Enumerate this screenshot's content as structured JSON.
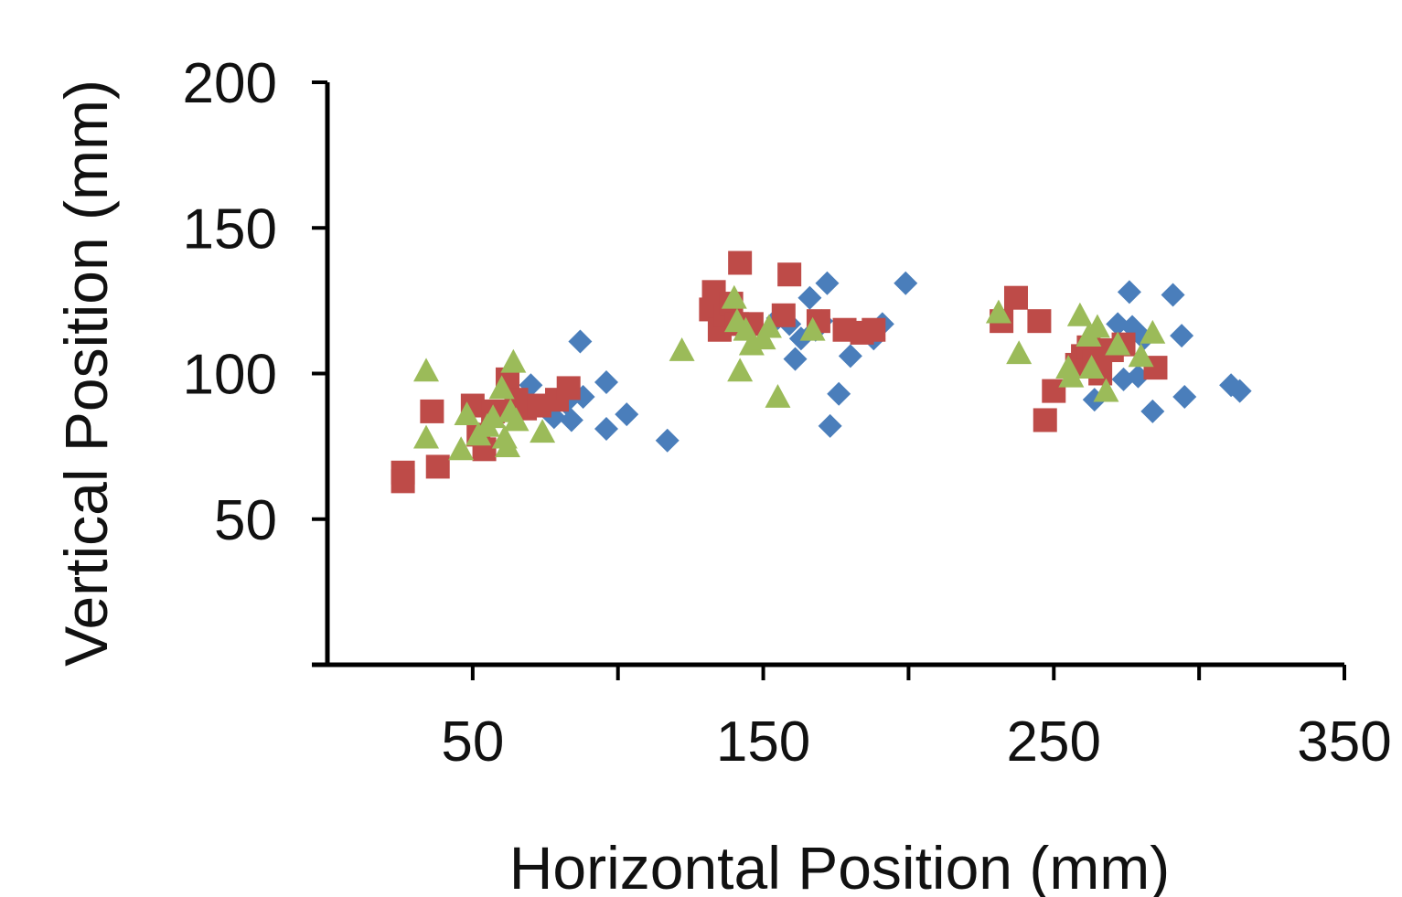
{
  "chart_data": {
    "type": "scatter",
    "title": "",
    "xlabel": "Horizontal Position (mm)",
    "ylabel": "Vertical Position (mm)",
    "xlim": [
      0,
      350
    ],
    "ylim": [
      0,
      200
    ],
    "xticks": [
      50,
      150,
      250,
      350
    ],
    "yticks": [
      50,
      100,
      150,
      200
    ],
    "xtick_labels": [
      "50",
      "150",
      "250",
      "350"
    ],
    "ytick_labels": [
      "50",
      "100",
      "150",
      "200"
    ],
    "grid": false,
    "legend": "none",
    "series": [
      {
        "marker": "diamond",
        "color": "#4a7ebb",
        "points": [
          [
            70,
            96
          ],
          [
            76,
            87
          ],
          [
            78,
            85
          ],
          [
            82,
            90
          ],
          [
            84,
            84
          ],
          [
            87,
            111
          ],
          [
            88,
            92
          ],
          [
            96,
            97
          ],
          [
            96,
            81
          ],
          [
            103,
            86
          ],
          [
            117,
            77
          ],
          [
            155,
            119
          ],
          [
            159,
            117
          ],
          [
            161,
            105
          ],
          [
            163,
            112
          ],
          [
            166,
            126
          ],
          [
            168,
            115
          ],
          [
            170,
            118
          ],
          [
            172,
            131
          ],
          [
            173,
            82
          ],
          [
            176,
            93
          ],
          [
            180,
            106
          ],
          [
            188,
            112
          ],
          [
            191,
            117
          ],
          [
            199,
            131
          ],
          [
            264,
            91
          ],
          [
            272,
            117
          ],
          [
            274,
            98
          ],
          [
            276,
            128
          ],
          [
            277,
            116
          ],
          [
            279,
            99
          ],
          [
            281,
            112
          ],
          [
            284,
            87
          ],
          [
            291,
            127
          ],
          [
            294,
            113
          ],
          [
            295,
            92
          ],
          [
            311,
            96
          ],
          [
            314,
            94
          ]
        ]
      },
      {
        "marker": "square",
        "color": "#be4b48",
        "points": [
          [
            26,
            66
          ],
          [
            26,
            63
          ],
          [
            36,
            87
          ],
          [
            38,
            68
          ],
          [
            50,
            89
          ],
          [
            52,
            79
          ],
          [
            54,
            74
          ],
          [
            57,
            87
          ],
          [
            62,
            98
          ],
          [
            65,
            91
          ],
          [
            68,
            88
          ],
          [
            73,
            89
          ],
          [
            79,
            91
          ],
          [
            83,
            95
          ],
          [
            132,
            122
          ],
          [
            133,
            128
          ],
          [
            135,
            115
          ],
          [
            137,
            120
          ],
          [
            139,
            124
          ],
          [
            141,
            117
          ],
          [
            142,
            138
          ],
          [
            146,
            117
          ],
          [
            157,
            120
          ],
          [
            159,
            134
          ],
          [
            169,
            118
          ],
          [
            178,
            115
          ],
          [
            184,
            114
          ],
          [
            188,
            115
          ],
          [
            232,
            118
          ],
          [
            237,
            126
          ],
          [
            245,
            118
          ],
          [
            247,
            84
          ],
          [
            250,
            94
          ],
          [
            258,
            103
          ],
          [
            260,
            106
          ],
          [
            262,
            109
          ],
          [
            264,
            104
          ],
          [
            266,
            100
          ],
          [
            270,
            108
          ],
          [
            274,
            110
          ],
          [
            285,
            102
          ]
        ]
      },
      {
        "marker": "triangle",
        "color": "#9bbb59",
        "points": [
          [
            34,
            101
          ],
          [
            34,
            78
          ],
          [
            46,
            74
          ],
          [
            48,
            86
          ],
          [
            52,
            79
          ],
          [
            55,
            82
          ],
          [
            57,
            85
          ],
          [
            60,
            95
          ],
          [
            61,
            78
          ],
          [
            62,
            75
          ],
          [
            63,
            87
          ],
          [
            64,
            104
          ],
          [
            65,
            84
          ],
          [
            74,
            80
          ],
          [
            122,
            108
          ],
          [
            140,
            126
          ],
          [
            141,
            118
          ],
          [
            142,
            101
          ],
          [
            144,
            115
          ],
          [
            146,
            110
          ],
          [
            150,
            112
          ],
          [
            152,
            116
          ],
          [
            155,
            92
          ],
          [
            167,
            115
          ],
          [
            231,
            121
          ],
          [
            238,
            107
          ],
          [
            255,
            102
          ],
          [
            256,
            99
          ],
          [
            259,
            120
          ],
          [
            262,
            113
          ],
          [
            263,
            102
          ],
          [
            265,
            116
          ],
          [
            268,
            94
          ],
          [
            272,
            110
          ],
          [
            280,
            106
          ],
          [
            284,
            114
          ]
        ]
      }
    ]
  }
}
